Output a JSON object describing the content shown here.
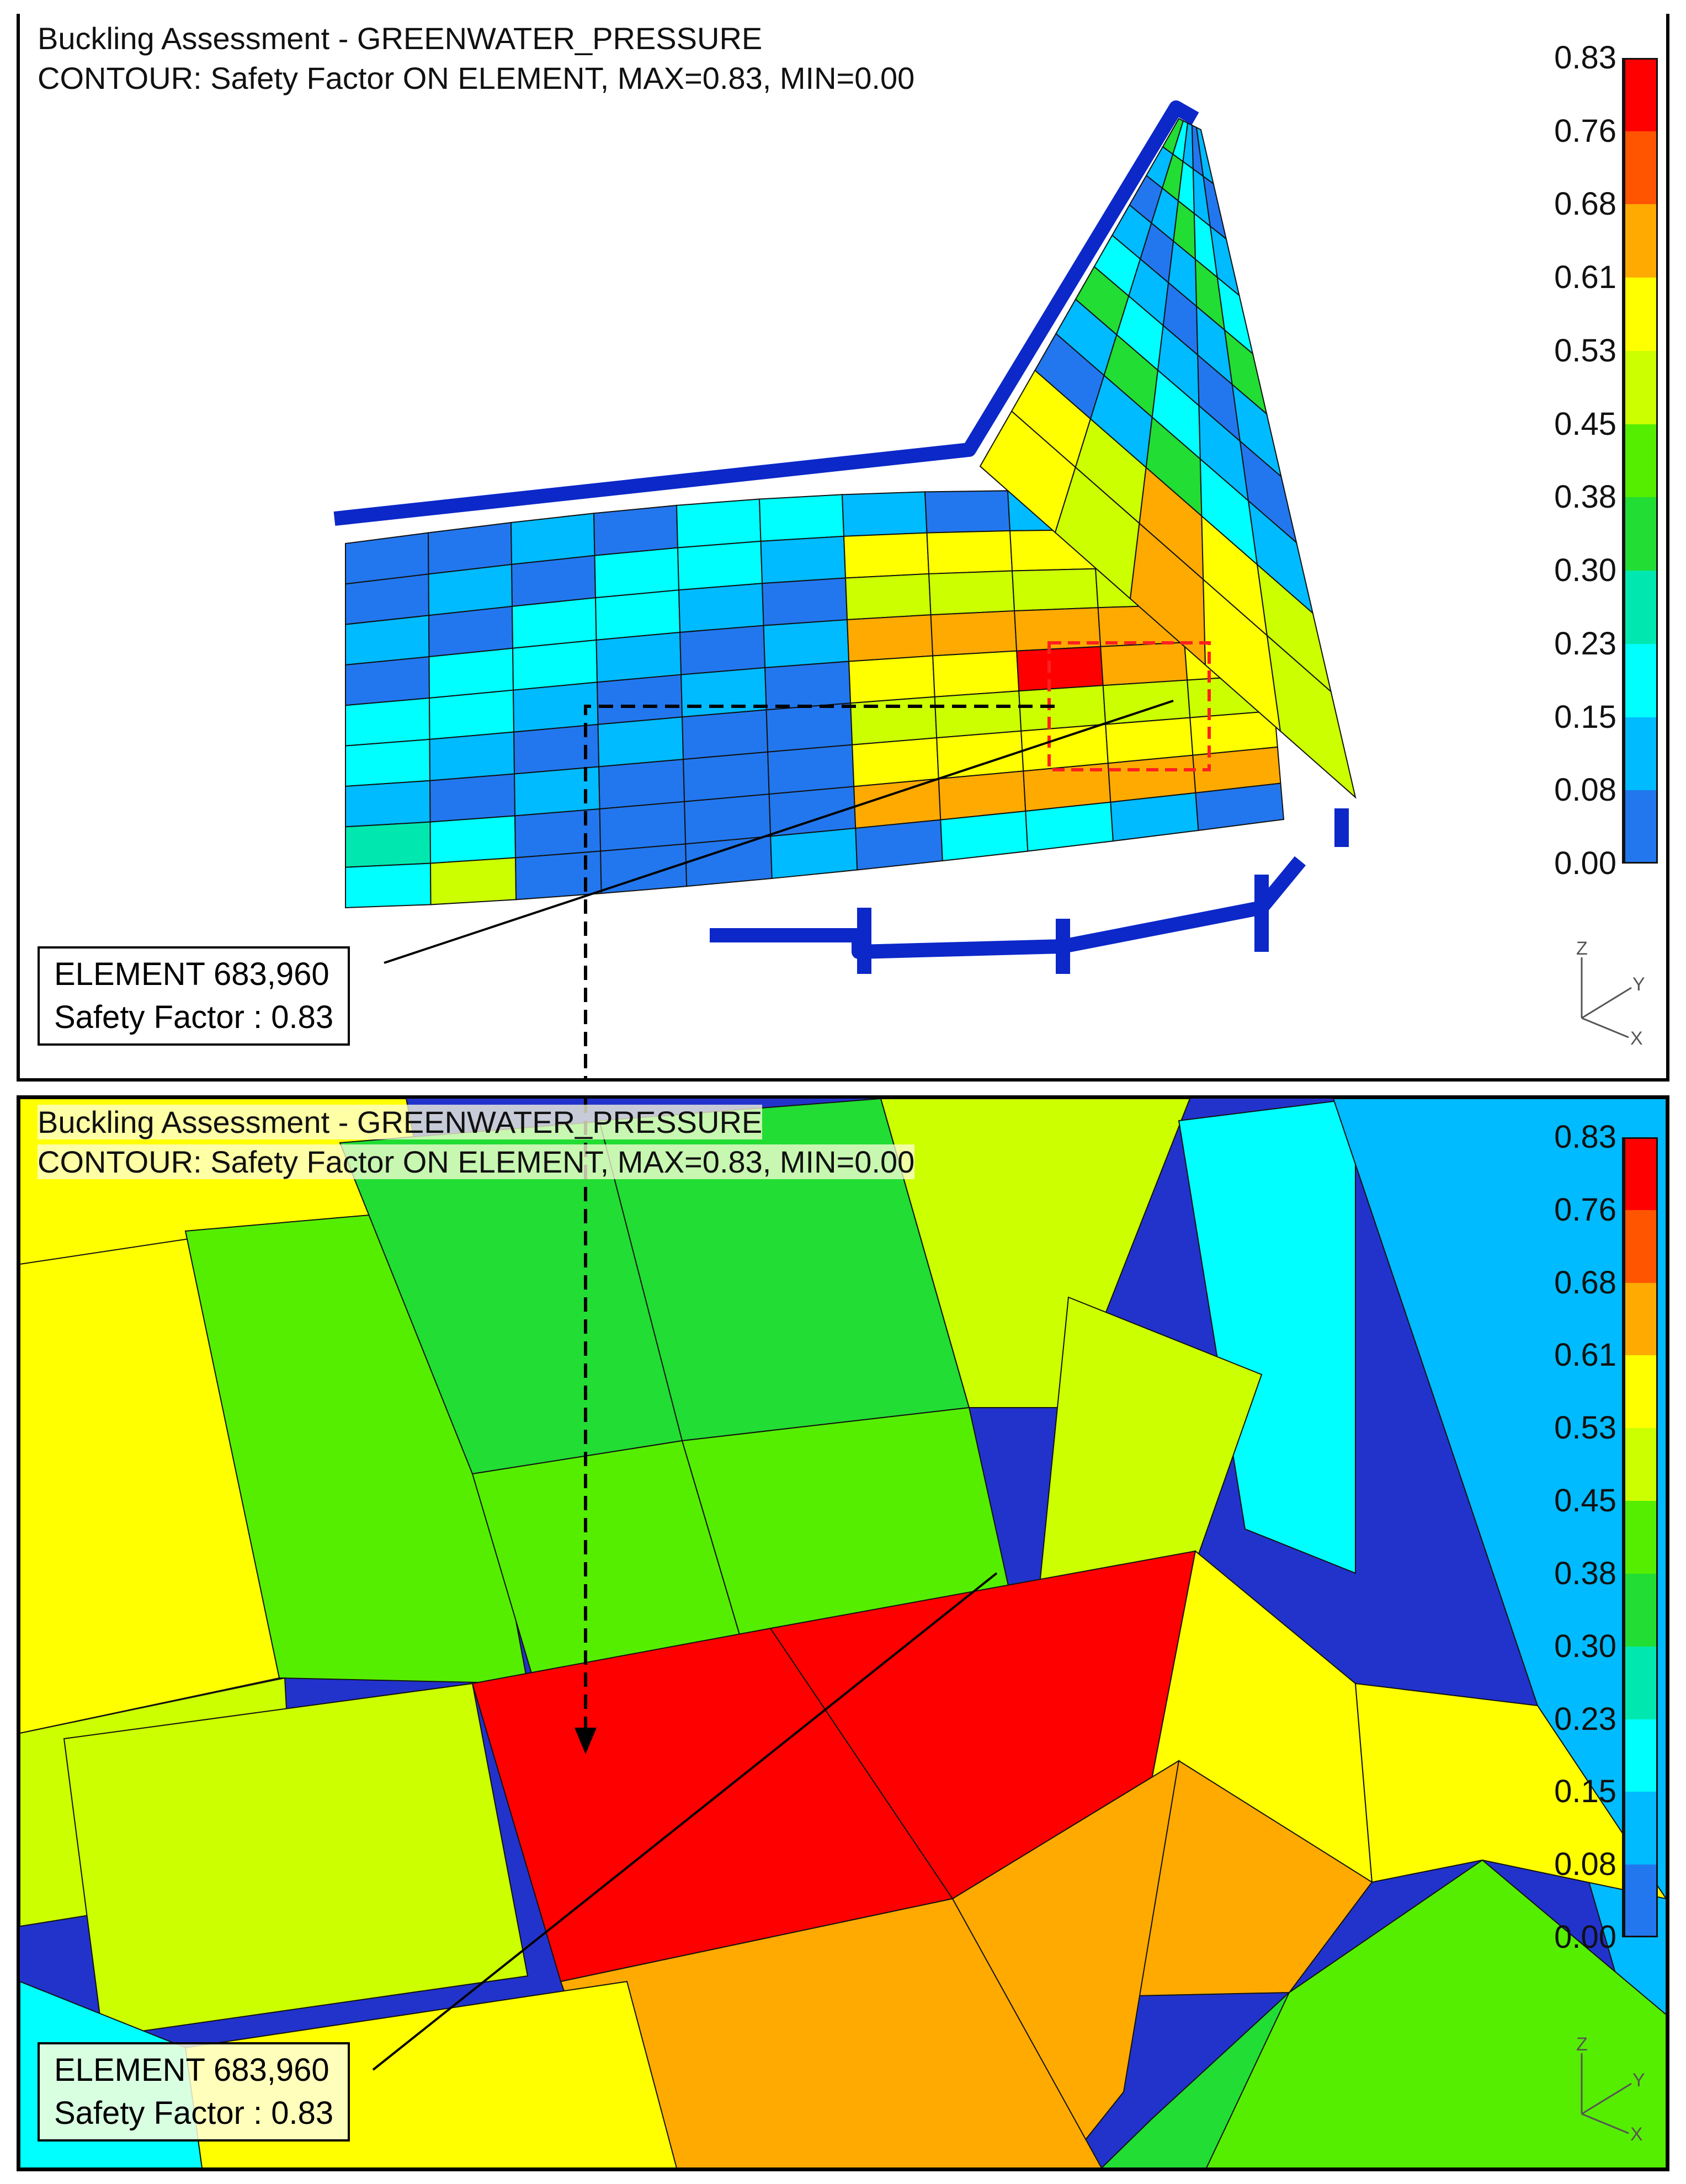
{
  "top_panel": {
    "title_line1": "Buckling Assessment - GREENWATER_PRESSURE",
    "title_line2": "CONTOUR: Safety Factor ON ELEMENT, MAX=0.83, MIN=0.00",
    "element_label": "ELEMENT 683,960",
    "safety_factor_label": "Safety Factor : 0.83"
  },
  "bottom_panel": {
    "title_line1": "Buckling Assessment - GREENWATER_PRESSURE",
    "title_line2": "CONTOUR: Safety Factor ON ELEMENT, MAX=0.83, MIN=0.00",
    "element_label": "ELEMENT 683,960",
    "safety_factor_label": "Safety Factor : 0.83"
  },
  "legend": {
    "ticks": [
      "0.83",
      "0.76",
      "0.68",
      "0.61",
      "0.53",
      "0.45",
      "0.38",
      "0.30",
      "0.23",
      "0.15",
      "0.08",
      "0.00"
    ],
    "colors": [
      "#ff0000",
      "#ff5500",
      "#ffaa00",
      "#ffff00",
      "#ccff00",
      "#55ee00",
      "#22dd33",
      "#00e8b0",
      "#00ffff",
      "#00bbff",
      "#2277ee",
      "#0000dd"
    ]
  },
  "axis_triad": {
    "z": "Z",
    "y": "Y",
    "x": "X"
  }
}
